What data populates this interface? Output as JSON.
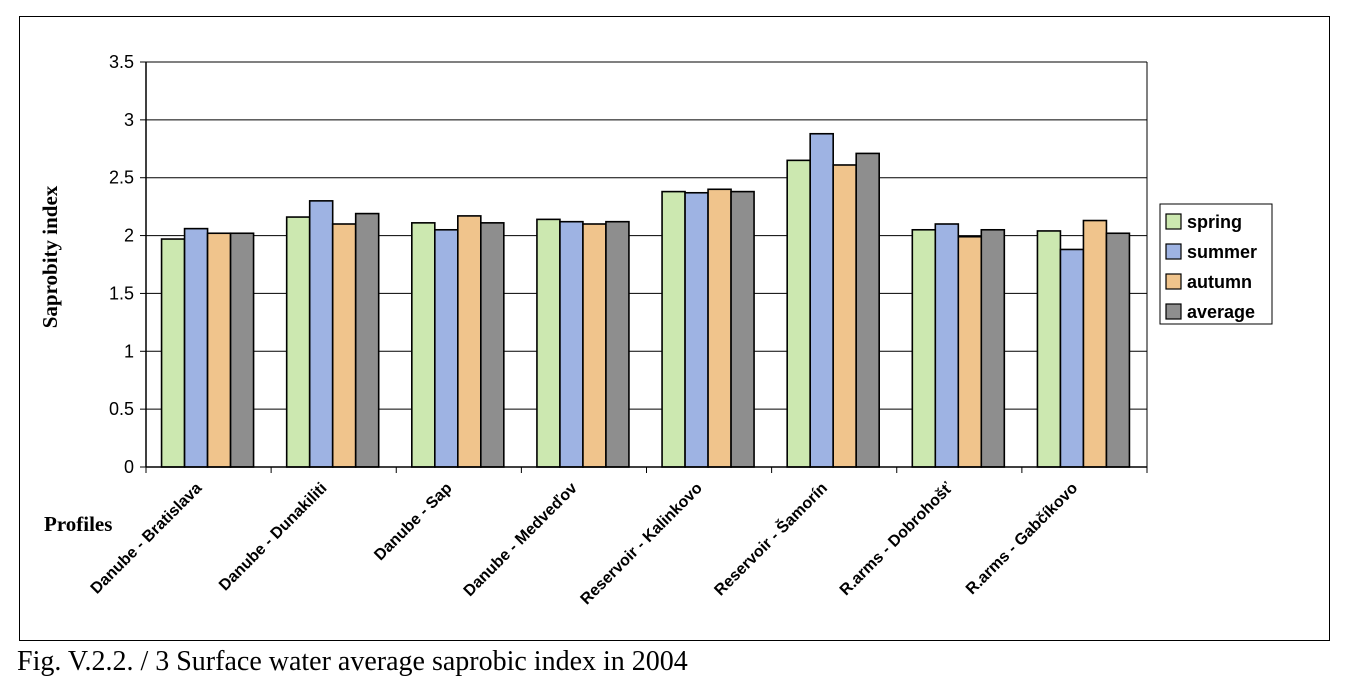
{
  "caption": "Fig. V.2.2. / 3  Surface water average saprobic index in 2004",
  "chart_data": {
    "type": "bar",
    "title": "",
    "xlabel": "Profiles",
    "ylabel": "Saprobity index",
    "ylim": [
      0,
      3.5
    ],
    "yticks": [
      "0",
      "0.5",
      "1",
      "1.5",
      "2",
      "2.5",
      "3",
      "3.5"
    ],
    "grid": true,
    "legend_position": "right",
    "categories": [
      "Danube - Bratislava",
      "Danube - Dunakiliti",
      "Danube - Sap",
      "Danube - Medveďov",
      "Reservoir - Kalinkovo",
      "Reservoir - Šamorín",
      "R.arms - Dobrohošť",
      "R.arms - Gabčíkovo"
    ],
    "series": [
      {
        "name": "spring",
        "color": "#cce8b0",
        "values": [
          1.97,
          2.16,
          2.11,
          2.14,
          2.38,
          2.65,
          2.05,
          2.04
        ]
      },
      {
        "name": "summer",
        "color": "#9eb3e3",
        "values": [
          2.06,
          2.3,
          2.05,
          2.12,
          2.37,
          2.88,
          2.1,
          1.88
        ]
      },
      {
        "name": "autumn",
        "color": "#f0c48c",
        "values": [
          2.02,
          2.1,
          2.17,
          2.1,
          2.4,
          2.61,
          1.99,
          2.13
        ]
      },
      {
        "name": "average",
        "color": "#8e8e8e",
        "values": [
          2.02,
          2.19,
          2.11,
          2.12,
          2.38,
          2.71,
          2.05,
          2.02
        ]
      }
    ]
  }
}
